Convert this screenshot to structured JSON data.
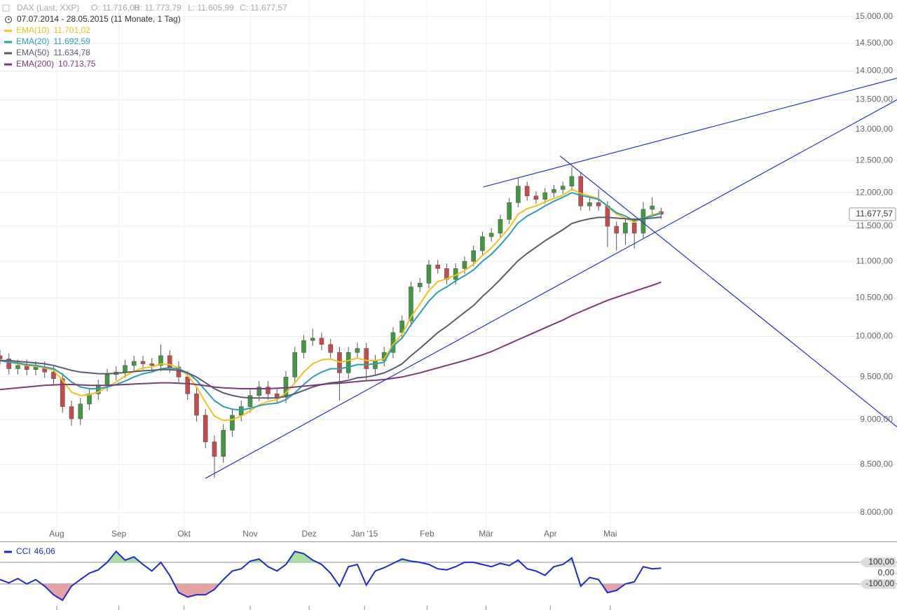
{
  "chart_data": {
    "type": "candlestick",
    "header": {
      "instrument": "DAX (Last, XXP)",
      "ohlc": [
        "O: 11.716,08",
        "H: 11.773,79",
        "L: 11.605,99",
        "C: 11.677,57"
      ],
      "period": "07.07.2014 - 28.05.2015 (11 Monate, 1 Tag)"
    },
    "open": [
      9760,
      9720,
      9600,
      9640,
      9590,
      9620,
      9560,
      9480,
      9150,
      9010,
      9180,
      9300,
      9400,
      9530,
      9560,
      9640,
      9690,
      9660,
      9640,
      9760,
      9620,
      9500,
      9300,
      9050,
      8750,
      8590,
      8880,
      9050,
      9150,
      9280,
      9380,
      9300,
      9260,
      9500,
      9800,
      9950,
      9980,
      9900,
      9800,
      9550,
      9800,
      9850,
      9600,
      9700,
      9800,
      10050,
      10200,
      10650,
      10700,
      10950,
      10900,
      10750,
      10900,
      11000,
      11150,
      11350,
      11400,
      11600,
      11850,
      12100,
      11950,
      11900,
      12000,
      12050,
      12100,
      12250,
      11800,
      11850,
      11800,
      11500,
      11400,
      11550,
      11400,
      11750,
      11716.08
    ],
    "high": [
      9830,
      9790,
      9710,
      9710,
      9690,
      9690,
      9630,
      9550,
      9220,
      9250,
      9370,
      9470,
      9600,
      9630,
      9710,
      9760,
      9760,
      9730,
      9900,
      9830,
      9690,
      9570,
      9370,
      9120,
      8820,
      8950,
      9120,
      9220,
      9350,
      9450,
      9450,
      9370,
      9570,
      9870,
      10020,
      10100,
      10050,
      9970,
      9870,
      9870,
      9920,
      9920,
      9770,
      9870,
      10120,
      10270,
      10720,
      10770,
      11020,
      11020,
      10970,
      10970,
      11070,
      11220,
      11420,
      11470,
      11670,
      11920,
      12220,
      12170,
      12020,
      12070,
      12120,
      12170,
      12390,
      12320,
      11920,
      12050,
      11870,
      11570,
      11620,
      11620,
      11860,
      11930,
      11773.79
    ],
    "low": [
      9650,
      9530,
      9530,
      9520,
      9520,
      9490,
      9410,
      9080,
      8930,
      8940,
      9110,
      9230,
      9330,
      9460,
      9490,
      9570,
      9590,
      9570,
      9570,
      9550,
      9430,
      9230,
      8980,
      8680,
      8360,
      8520,
      8810,
      8980,
      9080,
      9210,
      9230,
      9190,
      9190,
      9430,
      9730,
      9880,
      9830,
      9730,
      9220,
      9480,
      9730,
      9450,
      9530,
      9630,
      9730,
      9980,
      10130,
      10580,
      10630,
      10830,
      10680,
      10680,
      10830,
      10930,
      11080,
      11280,
      11330,
      11530,
      11780,
      11880,
      11830,
      11830,
      11930,
      11980,
      12030,
      11730,
      11730,
      11730,
      11200,
      11150,
      11230,
      11180,
      11330,
      11680,
      11605.99
    ],
    "close": [
      9720,
      9600,
      9640,
      9590,
      9620,
      9560,
      9480,
      9150,
      9010,
      9180,
      9300,
      9400,
      9530,
      9560,
      9640,
      9690,
      9660,
      9640,
      9760,
      9620,
      9500,
      9300,
      9050,
      8750,
      8590,
      8880,
      9050,
      9150,
      9280,
      9380,
      9300,
      9260,
      9500,
      9800,
      9950,
      9980,
      9900,
      9800,
      9550,
      9800,
      9850,
      9600,
      9700,
      9800,
      10050,
      10200,
      10650,
      10700,
      10950,
      10900,
      10750,
      10900,
      11000,
      11150,
      11350,
      11400,
      11600,
      11850,
      12100,
      11950,
      11900,
      12000,
      12050,
      12100,
      12250,
      11800,
      11850,
      11800,
      11500,
      11400,
      11550,
      11400,
      11750,
      11800,
      11677.57
    ],
    "up_color": "#3f9a3f",
    "down_color": "#c94a4a",
    "price_label": "11.677,57",
    "series": [
      {
        "name": "EMA(10)",
        "value_label": "11.701,02",
        "color": "#f2c21b",
        "values": [
          9700,
          9680,
          9660,
          9640,
          9630,
          9610,
          9580,
          9460,
          9320,
          9280,
          9290,
          9320,
          9380,
          9440,
          9510,
          9570,
          9610,
          9620,
          9660,
          9650,
          9610,
          9520,
          9380,
          9200,
          9040,
          8990,
          9000,
          9040,
          9100,
          9170,
          9210,
          9230,
          9310,
          9430,
          9560,
          9660,
          9710,
          9720,
          9680,
          9700,
          9730,
          9700,
          9700,
          9720,
          9900,
          10030,
          10250,
          10420,
          10600,
          10720,
          10760,
          10810,
          10870,
          10960,
          11080,
          11190,
          11330,
          11480,
          11680,
          11760,
          11800,
          11860,
          11910,
          11960,
          12050,
          11990,
          11950,
          11910,
          11790,
          11680,
          11620,
          11560,
          11620,
          11670,
          11701.02
        ]
      },
      {
        "name": "EMA(20)",
        "value_label": "11.692,59",
        "color": "#2a9fb5",
        "values": [
          9700,
          9680,
          9670,
          9650,
          9640,
          9620,
          9600,
          9530,
          9440,
          9380,
          9360,
          9360,
          9380,
          9410,
          9450,
          9500,
          9540,
          9560,
          9600,
          9610,
          9600,
          9550,
          9460,
          9340,
          9220,
          9150,
          9120,
          9110,
          9130,
          9160,
          9180,
          9190,
          9230,
          9310,
          9410,
          9500,
          9560,
          9600,
          9600,
          9620,
          9650,
          9650,
          9660,
          9680,
          9880,
          9980,
          10150,
          10300,
          10460,
          10580,
          10650,
          10730,
          10800,
          10880,
          11000,
          11100,
          11230,
          11380,
          11550,
          11650,
          11720,
          11800,
          11870,
          11930,
          12000,
          11960,
          11930,
          11900,
          11800,
          11700,
          11650,
          11580,
          11620,
          11650,
          11692.59
        ]
      },
      {
        "name": "EMA(50)",
        "value_label": "11.634,78",
        "color": "#5b5a6e",
        "values": [
          9700,
          9700,
          9690,
          9680,
          9670,
          9660,
          9640,
          9610,
          9580,
          9560,
          9550,
          9540,
          9540,
          9545,
          9555,
          9565,
          9575,
          9580,
          9590,
          9590,
          9580,
          9550,
          9500,
          9430,
          9360,
          9310,
          9280,
          9260,
          9250,
          9250,
          9250,
          9250,
          9270,
          9300,
          9340,
          9380,
          9410,
          9430,
          9440,
          9460,
          9490,
          9500,
          9520,
          9550,
          9600,
          9660,
          9760,
          9850,
          9950,
          10050,
          10130,
          10220,
          10310,
          10400,
          10520,
          10630,
          10750,
          10880,
          11010,
          11110,
          11200,
          11290,
          11370,
          11450,
          11540,
          11580,
          11610,
          11630,
          11630,
          11620,
          11610,
          11600,
          11610,
          11620,
          11634.78
        ]
      },
      {
        "name": "EMA(200)",
        "value_label": "10.713,75",
        "color": "#7d3a7a",
        "values": [
          9350,
          9360,
          9370,
          9380,
          9390,
          9400,
          9405,
          9410,
          9410,
          9405,
          9400,
          9400,
          9400,
          9405,
          9410,
          9415,
          9420,
          9425,
          9430,
          9430,
          9425,
          9420,
          9410,
          9395,
          9380,
          9370,
          9365,
          9360,
          9360,
          9360,
          9360,
          9365,
          9370,
          9380,
          9390,
          9400,
          9410,
          9420,
          9425,
          9435,
          9445,
          9455,
          9460,
          9470,
          9485,
          9500,
          9525,
          9550,
          9580,
          9610,
          9640,
          9670,
          9700,
          9735,
          9770,
          9810,
          9860,
          9910,
          9960,
          10010,
          10060,
          10110,
          10160,
          10210,
          10270,
          10320,
          10370,
          10420,
          10470,
          10510,
          10550,
          10590,
          10630,
          10670,
          10713.75
        ]
      }
    ],
    "trendlines": {
      "color": "#2433d6",
      "lines": [
        {
          "x": [
            54.1,
            100.4
          ],
          "y": [
            12088,
            13875
          ]
        },
        {
          "x": [
            23.0,
            100.4
          ],
          "y": [
            8355,
            13500
          ]
        },
        {
          "x": [
            62.7,
            100.4
          ],
          "y": [
            12570,
            8917
          ]
        }
      ]
    },
    "log": true,
    "grid": true,
    "xlim": [
      0,
      100.4
    ],
    "xticks": [
      {
        "value": 6.35,
        "label": "Aug"
      },
      {
        "value": 13.3,
        "label": "Sep"
      },
      {
        "value": 20.6,
        "label": "Okt"
      },
      {
        "value": 28,
        "label": "Nov"
      },
      {
        "value": 34.6,
        "label": "Dez"
      },
      {
        "value": 40.8,
        "label": "Jan '15"
      },
      {
        "value": 47.8,
        "label": "Feb"
      },
      {
        "value": 54.4,
        "label": "Mär"
      },
      {
        "value": 61.6,
        "label": "Apr"
      },
      {
        "value": 68.3,
        "label": "Mai"
      }
    ],
    "ylim": [
      7720,
      15320
    ],
    "yticks": [
      {
        "value": 8000,
        "label": "8.000,00"
      },
      {
        "value": 8500,
        "label": "8.500,00"
      },
      {
        "value": 9000,
        "label": "9.000,00"
      },
      {
        "value": 9500,
        "label": "9.500,00"
      },
      {
        "value": 10000,
        "label": "10.000,00"
      },
      {
        "value": 10500,
        "label": "10.500,00"
      },
      {
        "value": 11000,
        "label": "11.000,00"
      },
      {
        "value": 11500,
        "label": "11.500,00"
      },
      {
        "value": 12000,
        "label": "12.000,00"
      },
      {
        "value": 12500,
        "label": "12.500,00"
      },
      {
        "value": 13000,
        "label": "13.000,00"
      },
      {
        "value": 13500,
        "label": "13.500,00"
      },
      {
        "value": 14000,
        "label": "14.000,00"
      },
      {
        "value": 14500,
        "label": "14.500,00"
      },
      {
        "value": 15000,
        "label": "15.000,00"
      }
    ],
    "indicator": {
      "type": "line",
      "name": "CCI",
      "value_label": "46,06",
      "color": "#1a2bd0",
      "above_color": "#a9dea0",
      "below_color": "#e7a3a3",
      "values": [
        -60,
        -90,
        -50,
        -100,
        -60,
        -120,
        -200,
        -250,
        -120,
        -60,
        0,
        30,
        100,
        200,
        120,
        150,
        80,
        20,
        100,
        -20,
        -180,
        -220,
        -200,
        -200,
        -150,
        -60,
        20,
        40,
        110,
        130,
        60,
        20,
        80,
        200,
        180,
        120,
        80,
        0,
        -120,
        60,
        80,
        -110,
        20,
        50,
        90,
        130,
        110,
        100,
        80,
        40,
        30,
        60,
        100,
        100,
        80,
        60,
        90,
        70,
        120,
        40,
        20,
        -20,
        60,
        80,
        140,
        -120,
        -40,
        -60,
        -180,
        -160,
        -100,
        -80,
        60,
        40,
        46.06
      ],
      "ylim": [
        -340,
        280
      ],
      "yticks": [
        {
          "value": 100,
          "label": "100,00"
        },
        {
          "value": 0,
          "label": "0,00"
        },
        {
          "value": -100,
          "label": "-100,00"
        }
      ]
    }
  }
}
